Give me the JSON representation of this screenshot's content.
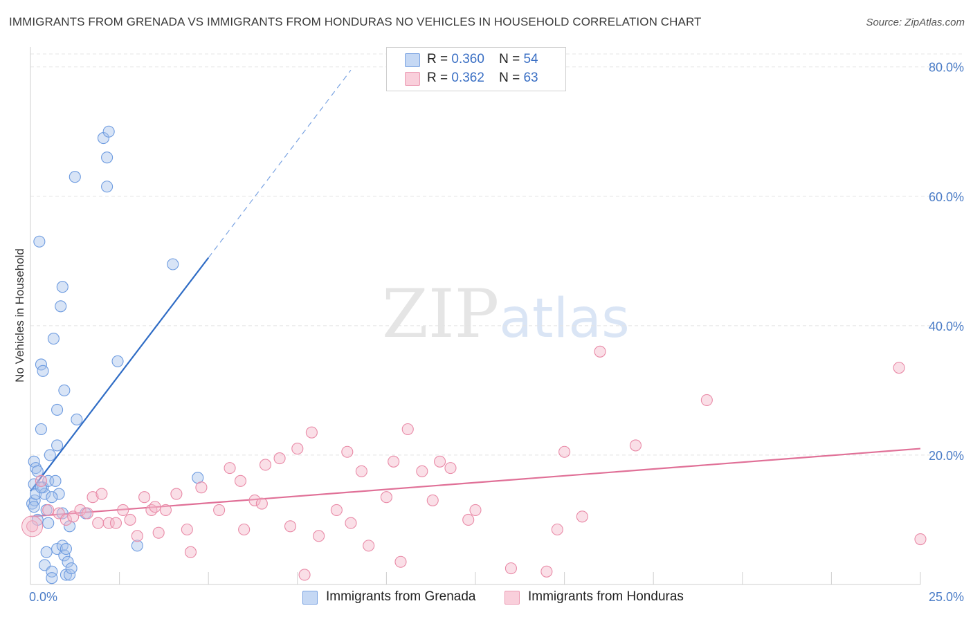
{
  "title": "IMMIGRANTS FROM GRENADA VS IMMIGRANTS FROM HONDURAS NO VEHICLES IN HOUSEHOLD CORRELATION CHART",
  "source": "Source: ZipAtlas.com",
  "watermark": {
    "zip": "ZIP",
    "atlas": "atlas"
  },
  "colors": {
    "blue": "#a9c4ec",
    "blue_stroke": "#6d9be0",
    "blue_line": "#2f6cc5",
    "pink": "#f5b8c9",
    "pink_stroke": "#e98aa7",
    "pink_line": "#e07097",
    "tick_text": "#4a7cc7",
    "grid": "#e4e4e4"
  },
  "legend": {
    "rows": [
      {
        "r_label": "R =",
        "r_value": "0.360",
        "n_label": "N =",
        "n_value": "54"
      },
      {
        "r_label": "R =",
        "r_value": "0.362",
        "n_label": "N =",
        "n_value": "63"
      }
    ]
  },
  "bottom_legend": [
    {
      "label": "Immigrants from Grenada"
    },
    {
      "label": "Immigrants from Honduras"
    }
  ],
  "chart_data": {
    "type": "scatter",
    "title": "IMMIGRANTS FROM GRENADA VS IMMIGRANTS FROM HONDURAS NO VEHICLES IN HOUSEHOLD CORRELATION CHART",
    "xlabel": "",
    "ylabel": "No Vehicles in Household",
    "xlim": [
      0,
      25
    ],
    "ylim": [
      0,
      82
    ],
    "x_tick_labels": [
      {
        "value": 0,
        "label": "0.0%"
      },
      {
        "value": 25,
        "label": "25.0%"
      }
    ],
    "y_tick_labels": [
      {
        "value": 20,
        "label": "20.0%"
      },
      {
        "value": 40,
        "label": "40.0%"
      },
      {
        "value": 60,
        "label": "60.0%"
      },
      {
        "value": 80,
        "label": "80.0%"
      }
    ],
    "grid": true,
    "series": [
      {
        "name": "Immigrants from Grenada",
        "color": "blue",
        "trend": {
          "x0": 0,
          "y0": 14.4,
          "x1": 5.0,
          "y1": 50.5,
          "dash_to_x": 9.0,
          "dash_to_y": 79.5
        },
        "points": [
          [
            0.05,
            12.5
          ],
          [
            0.1,
            19.0
          ],
          [
            0.1,
            15.5
          ],
          [
            0.12,
            13.0
          ],
          [
            0.15,
            18.0
          ],
          [
            0.15,
            14.0
          ],
          [
            0.2,
            10.0
          ],
          [
            0.25,
            53.0
          ],
          [
            0.3,
            34.0
          ],
          [
            0.3,
            24.0
          ],
          [
            0.35,
            33.0
          ],
          [
            0.35,
            15.0
          ],
          [
            0.4,
            14.0
          ],
          [
            0.4,
            3.0
          ],
          [
            0.45,
            11.5
          ],
          [
            0.45,
            5.0
          ],
          [
            0.5,
            9.5
          ],
          [
            0.5,
            16.0
          ],
          [
            0.55,
            20.0
          ],
          [
            0.6,
            2.0
          ],
          [
            0.6,
            1.0
          ],
          [
            0.65,
            38.0
          ],
          [
            0.7,
            16.0
          ],
          [
            0.75,
            27.0
          ],
          [
            0.75,
            21.5
          ],
          [
            0.75,
            5.5
          ],
          [
            0.8,
            14.0
          ],
          [
            0.85,
            43.0
          ],
          [
            0.9,
            46.0
          ],
          [
            0.9,
            6.0
          ],
          [
            0.95,
            30.0
          ],
          [
            0.95,
            4.5
          ],
          [
            1.0,
            5.5
          ],
          [
            1.0,
            1.5
          ],
          [
            1.05,
            3.5
          ],
          [
            1.1,
            9.0
          ],
          [
            1.1,
            1.5
          ],
          [
            1.15,
            2.5
          ],
          [
            1.25,
            63.0
          ],
          [
            1.3,
            25.5
          ],
          [
            1.55,
            11.0
          ],
          [
            2.05,
            69.0
          ],
          [
            2.15,
            66.0
          ],
          [
            2.15,
            61.5
          ],
          [
            2.2,
            70.0
          ],
          [
            2.45,
            34.5
          ],
          [
            4.0,
            49.5
          ],
          [
            4.7,
            16.5
          ],
          [
            3.0,
            6.0
          ],
          [
            0.1,
            12.0
          ],
          [
            0.2,
            17.5
          ],
          [
            0.3,
            15.0
          ],
          [
            0.6,
            13.5
          ],
          [
            0.9,
            11.0
          ]
        ]
      },
      {
        "name": "Immigrants from Honduras",
        "color": "pink",
        "trend": {
          "x0": 0,
          "y0": 10.5,
          "x1": 25.0,
          "y1": 21.0
        },
        "points": [
          [
            0.05,
            9.0
          ],
          [
            0.3,
            16.0
          ],
          [
            0.5,
            11.5
          ],
          [
            0.8,
            11.0
          ],
          [
            1.0,
            10.0
          ],
          [
            1.2,
            10.5
          ],
          [
            1.4,
            11.5
          ],
          [
            1.6,
            11.0
          ],
          [
            1.75,
            13.5
          ],
          [
            1.9,
            9.5
          ],
          [
            2.0,
            14.0
          ],
          [
            2.2,
            9.5
          ],
          [
            2.4,
            9.5
          ],
          [
            2.6,
            11.5
          ],
          [
            2.8,
            10.0
          ],
          [
            3.0,
            7.5
          ],
          [
            3.2,
            13.5
          ],
          [
            3.4,
            11.5
          ],
          [
            3.5,
            12.0
          ],
          [
            3.6,
            8.0
          ],
          [
            3.8,
            11.5
          ],
          [
            4.1,
            14.0
          ],
          [
            4.4,
            8.5
          ],
          [
            4.5,
            5.0
          ],
          [
            4.8,
            15.0
          ],
          [
            5.3,
            11.5
          ],
          [
            5.6,
            18.0
          ],
          [
            5.9,
            16.0
          ],
          [
            6.0,
            8.5
          ],
          [
            6.3,
            13.0
          ],
          [
            6.5,
            12.5
          ],
          [
            6.6,
            18.5
          ],
          [
            7.0,
            19.5
          ],
          [
            7.3,
            9.0
          ],
          [
            7.5,
            21.0
          ],
          [
            7.7,
            1.5
          ],
          [
            7.9,
            23.5
          ],
          [
            8.1,
            7.5
          ],
          [
            8.6,
            11.5
          ],
          [
            8.9,
            20.5
          ],
          [
            9.0,
            9.5
          ],
          [
            9.3,
            17.5
          ],
          [
            9.5,
            6.0
          ],
          [
            10.0,
            13.5
          ],
          [
            10.2,
            19.0
          ],
          [
            10.4,
            3.5
          ],
          [
            10.6,
            24.0
          ],
          [
            11.0,
            17.5
          ],
          [
            11.3,
            13.0
          ],
          [
            11.5,
            19.0
          ],
          [
            11.8,
            18.0
          ],
          [
            12.3,
            10.0
          ],
          [
            12.5,
            11.5
          ],
          [
            13.5,
            2.5
          ],
          [
            14.5,
            2.0
          ],
          [
            14.8,
            8.5
          ],
          [
            15.0,
            20.5
          ],
          [
            15.5,
            10.5
          ],
          [
            16.0,
            36.0
          ],
          [
            17.0,
            21.5
          ],
          [
            19.0,
            28.5
          ],
          [
            24.4,
            33.5
          ],
          [
            25.0,
            7.0
          ]
        ]
      }
    ]
  }
}
